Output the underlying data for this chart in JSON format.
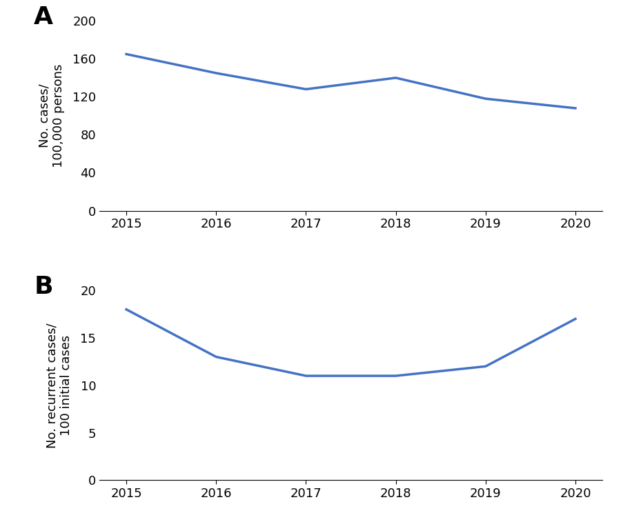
{
  "years": [
    2015,
    2016,
    2017,
    2018,
    2019,
    2020
  ],
  "panel_a": {
    "values": [
      165,
      145,
      128,
      140,
      118,
      108
    ],
    "ylabel_line1": "No. cases/",
    "ylabel_line2": "100,000 persons",
    "ylim": [
      0,
      200
    ],
    "yticks": [
      0,
      40,
      80,
      120,
      160,
      200
    ],
    "label": "A"
  },
  "panel_b": {
    "values": [
      18,
      13,
      11,
      11,
      12,
      17
    ],
    "ylabel_line1": "No. recurrent cases/",
    "ylabel_line2": "100 initial cases",
    "ylim": [
      0,
      20
    ],
    "yticks": [
      0,
      5,
      10,
      15,
      20
    ],
    "label": "B"
  },
  "line_color": "#4472C4",
  "line_width": 2.5,
  "xlim": [
    2014.7,
    2020.3
  ],
  "xticks": [
    2015,
    2016,
    2017,
    2018,
    2019,
    2020
  ],
  "label_fontsize": 26,
  "tick_fontsize": 13,
  "ylabel_fontsize": 13
}
